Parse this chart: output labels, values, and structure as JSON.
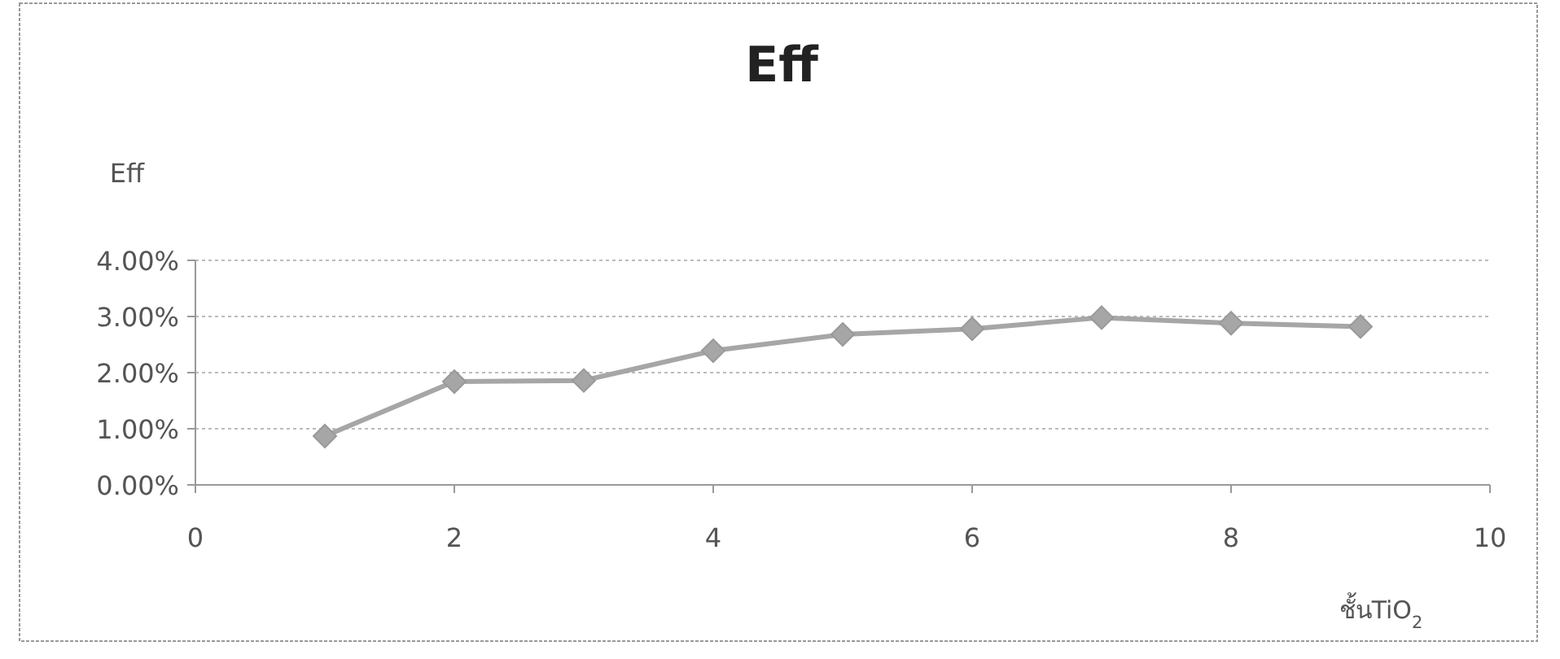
{
  "chart_data": {
    "type": "line",
    "title": "Eff",
    "ylabel": "Eff",
    "xlabel": "ชั้นTiO$_{2}$",
    "x": [
      1,
      2,
      3,
      4,
      5,
      6,
      7,
      8,
      9
    ],
    "series": [
      {
        "color": "#a6a6a6",
        "values": [
          0.87,
          1.84,
          1.86,
          2.39,
          2.68,
          2.78,
          2.98,
          2.88,
          2.82
        ]
      }
    ],
    "xlim": [
      0,
      10
    ],
    "xticks": [
      0,
      2,
      4,
      6,
      8,
      10
    ],
    "ylim": [
      0,
      4
    ],
    "yticks": [
      {
        "value": 0,
        "label": "0.00%"
      },
      {
        "value": 1,
        "label": "1.00%"
      },
      {
        "value": 2,
        "label": "2.00%"
      },
      {
        "value": 3,
        "label": "3.00%"
      },
      {
        "value": 4,
        "label": "4.00%"
      }
    ],
    "grid": "y",
    "marker": "diamond",
    "line_style": "solid"
  }
}
